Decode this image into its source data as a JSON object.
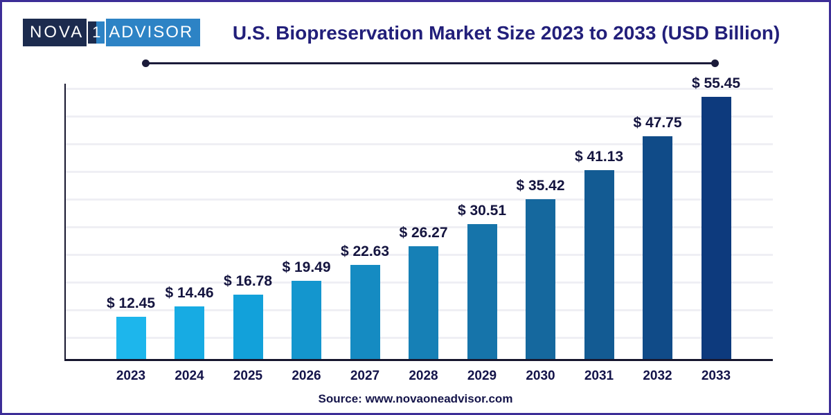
{
  "logo": {
    "part1": "NOVA",
    "part2": "1",
    "part3": "ADVISOR"
  },
  "header": {
    "title": "U.S. Biopreservation Market Size 2023 to 2033 (USD Billion)"
  },
  "footer": {
    "source": "Source: www.novaoneadvisor.com"
  },
  "chart_data": {
    "type": "bar",
    "title": "U.S. Biopreservation Market Size 2023 to 2033 (USD Billion)",
    "unit": "USD Billion",
    "categories": [
      "2023",
      "2024",
      "2025",
      "2026",
      "2027",
      "2028",
      "2029",
      "2030",
      "2031",
      "2032",
      "2033"
    ],
    "values": [
      12.45,
      14.46,
      16.78,
      19.49,
      22.63,
      26.27,
      30.51,
      35.42,
      41.13,
      47.75,
      55.45
    ],
    "labels": [
      "$ 12.45",
      "$ 14.46",
      "$ 16.78",
      "$ 19.49",
      "$ 22.63",
      "$ 26.27",
      "$ 30.51",
      "$ 35.42",
      "$ 41.13",
      "$ 47.75",
      "$ 55.45"
    ],
    "bar_colors": [
      "#1db6ec",
      "#17abe3",
      "#12a1da",
      "#1496ce",
      "#158bc2",
      "#1680b6",
      "#1674aa",
      "#15689e",
      "#135b93",
      "#104b88",
      "#0d3a7d"
    ],
    "ylim": [
      0,
      60
    ],
    "grid": "horizontal",
    "legend": "none"
  },
  "colors": {
    "border": "#3c2d97",
    "title": "#221f7a",
    "axis": "#16162e",
    "gridline": "#efeff4",
    "value_label": "#14143f",
    "tick_label": "#14144a",
    "logo_navy": "#1c2b4e",
    "logo_blue": "#2d83c5",
    "rule": "#1b1b3a"
  }
}
